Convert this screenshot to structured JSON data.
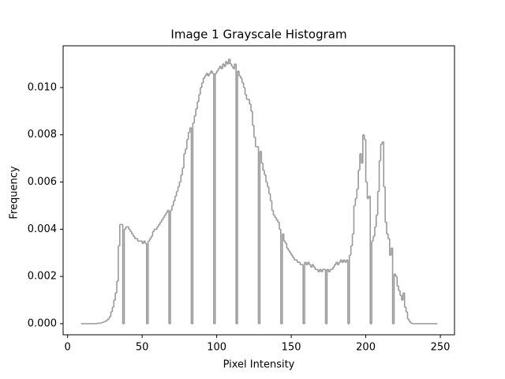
{
  "chart_data": {
    "type": "histogram",
    "title": "Image 1 Grayscale Histogram",
    "x_label": "Pixel Intensity",
    "y_label": "Frequency",
    "color": "#999999",
    "xlim": [
      -3,
      259.5
    ],
    "ylim": [
      -0.00047,
      0.01177
    ],
    "xticks": [
      0,
      50,
      100,
      150,
      200,
      250
    ],
    "yticks": [
      {
        "value": 0,
        "label": "0.000"
      },
      {
        "value": 0.002,
        "label": "0.002"
      },
      {
        "value": 0.004,
        "label": "0.004"
      },
      {
        "value": 0.006,
        "label": "0.006"
      },
      {
        "value": 0.008,
        "label": "0.008"
      },
      {
        "value": 0.01,
        "label": "0.010"
      }
    ],
    "bins": [
      9,
      10,
      11,
      12,
      13,
      14,
      15,
      16,
      17,
      18,
      19,
      20,
      21,
      22,
      23,
      24,
      25,
      26,
      27,
      28,
      29,
      30,
      31,
      32,
      33,
      34,
      35,
      36,
      37,
      38,
      39,
      40,
      41,
      42,
      43,
      44,
      45,
      46,
      47,
      48,
      49,
      50,
      51,
      52,
      53,
      54,
      55,
      56,
      57,
      58,
      59,
      60,
      61,
      62,
      63,
      64,
      65,
      66,
      67,
      68,
      69,
      70,
      71,
      72,
      73,
      74,
      75,
      76,
      77,
      78,
      79,
      80,
      81,
      82,
      83,
      84,
      85,
      86,
      87,
      88,
      89,
      90,
      91,
      92,
      93,
      94,
      95,
      96,
      97,
      98,
      99,
      100,
      101,
      102,
      103,
      104,
      105,
      106,
      107,
      108,
      109,
      110,
      111,
      112,
      113,
      114,
      115,
      116,
      117,
      118,
      119,
      120,
      121,
      122,
      123,
      124,
      125,
      126,
      127,
      128,
      129,
      130,
      131,
      132,
      133,
      134,
      135,
      136,
      137,
      138,
      139,
      140,
      141,
      142,
      143,
      144,
      145,
      146,
      147,
      148,
      149,
      150,
      151,
      152,
      153,
      154,
      155,
      156,
      157,
      158,
      159,
      160,
      161,
      162,
      163,
      164,
      165,
      166,
      167,
      168,
      169,
      170,
      171,
      172,
      173,
      174,
      175,
      176,
      177,
      178,
      179,
      180,
      181,
      182,
      183,
      184,
      185,
      186,
      187,
      188,
      189,
      190,
      191,
      192,
      193,
      194,
      195,
      196,
      197,
      198,
      199,
      200,
      201,
      202,
      203,
      204,
      205,
      206,
      207,
      208,
      209,
      210,
      211,
      212,
      213,
      214,
      215,
      216,
      217,
      218,
      219,
      220,
      221,
      222,
      223,
      224,
      225,
      226,
      227,
      228,
      229,
      230,
      231,
      232,
      233,
      234,
      235,
      236,
      237,
      238,
      239,
      240,
      241,
      242,
      243,
      244,
      245,
      246,
      247,
      248
    ],
    "values": [
      0,
      0,
      0,
      0,
      0,
      0,
      0,
      0,
      0,
      0,
      0,
      2e-05,
      2e-05,
      3e-05,
      5e-05,
      8e-05,
      0.0001,
      0.00015,
      0.0002,
      0.0003,
      0.0005,
      0.0007,
      0.001,
      0.0013,
      0.0018,
      0.0033,
      0.0042,
      0.0042,
      0,
      0.004,
      0.0041,
      0.0041,
      0.004,
      0.0039,
      0.0038,
      0.0037,
      0.0036,
      0.0036,
      0.0035,
      0.0035,
      0.0035,
      0.0034,
      0.0035,
      0.0034,
      0,
      0.0035,
      0.0036,
      0.0037,
      0.0039,
      0.004,
      0.004,
      0.0041,
      0.0042,
      0.0043,
      0.0044,
      0.0045,
      0.0046,
      0.0047,
      0.0048,
      0,
      0.0048,
      0.005,
      0.0052,
      0.0054,
      0.0056,
      0.0058,
      0.006,
      0.0063,
      0.0066,
      0.0072,
      0.0074,
      0.0078,
      0.0081,
      0.0083,
      0,
      0.0085,
      0.0088,
      0.0091,
      0.0094,
      0.0097,
      0.01,
      0.0102,
      0.0104,
      0.0105,
      0.0106,
      0.0105,
      0.0106,
      0.0107,
      0.0106,
      0,
      0.0106,
      0.0107,
      0.0108,
      0.0109,
      0.0108,
      0.011,
      0.0109,
      0.0111,
      0.011,
      0.0112,
      0.011,
      0.0109,
      0.0108,
      0.011,
      0,
      0.0107,
      0.0105,
      0.0104,
      0.0102,
      0.01,
      0.0097,
      0.0095,
      0.0095,
      0.0093,
      0.009,
      0.0084,
      0.0079,
      0.0075,
      0.0075,
      0,
      0.0073,
      0.0068,
      0.0065,
      0.0063,
      0.006,
      0.0058,
      0.0055,
      0.0052,
      0.0048,
      0.0046,
      0.0045,
      0.0044,
      0.0043,
      0.004,
      0,
      0.0038,
      0.0035,
      0.0034,
      0.0032,
      0.0031,
      0.003,
      0.0029,
      0.0028,
      0.0027,
      0.0027,
      0.0026,
      0.0026,
      0.0025,
      0.0025,
      0,
      0.0026,
      0.0025,
      0.0026,
      0.0025,
      0.0024,
      0.0025,
      0.0024,
      0.0023,
      0.0023,
      0.0022,
      0.0023,
      0.0022,
      0.0023,
      0.0023,
      0,
      0.0023,
      0.0022,
      0.0023,
      0.0023,
      0.0024,
      0.0025,
      0.0026,
      0.0025,
      0.0026,
      0.0027,
      0.0026,
      0.0027,
      0.0026,
      0.0027,
      0,
      0.0029,
      0.0033,
      0.0038,
      0.005,
      0.0053,
      0.0057,
      0.0065,
      0.0072,
      0.0068,
      0.008,
      0.0078,
      0.006,
      0.0053,
      0.0054,
      0,
      0.0035,
      0.0037,
      0.0041,
      0.0046,
      0.0056,
      0.0069,
      0.0076,
      0.0077,
      0.0058,
      0.0043,
      0.0038,
      0.0036,
      0.0029,
      0.0032,
      0,
      0.0021,
      0.002,
      0.0016,
      0.0014,
      0.0012,
      0.001,
      0.0013,
      0.0007,
      0.0005,
      0.0002,
      0.0001,
      3e-05,
      0,
      0,
      0,
      0,
      0,
      0,
      0,
      0,
      0,
      0,
      0,
      0,
      0,
      0,
      0,
      0,
      0
    ]
  }
}
